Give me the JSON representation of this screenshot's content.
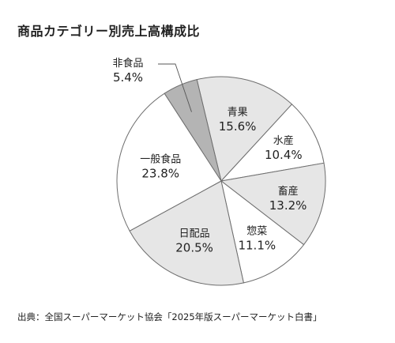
{
  "chart_data": {
    "type": "pie",
    "title": "商品カテゴリー別売上高構成比",
    "slices": [
      {
        "label": "青果",
        "value_label": "15.6%",
        "value": 15.6,
        "color": "#e6e6e6"
      },
      {
        "label": "水産",
        "value_label": "10.4%",
        "value": 10.4,
        "color": "#ffffff"
      },
      {
        "label": "畜産",
        "value_label": "13.2%",
        "value": 13.2,
        "color": "#e6e6e6"
      },
      {
        "label": "惣菜",
        "value_label": "11.1%",
        "value": 11.1,
        "color": "#ffffff"
      },
      {
        "label": "日配品",
        "value_label": "20.5%",
        "value": 20.5,
        "color": "#e6e6e6"
      },
      {
        "label": "一般食品",
        "value_label": "23.8%",
        "value": 23.8,
        "color": "#ffffff"
      },
      {
        "label": "非食品",
        "value_label": "5.4%",
        "value": 5.4,
        "color": "#b4b4b4"
      }
    ],
    "source": "出典：全国スーパーマーケット協会「2025年版スーパーマーケット白書」"
  }
}
